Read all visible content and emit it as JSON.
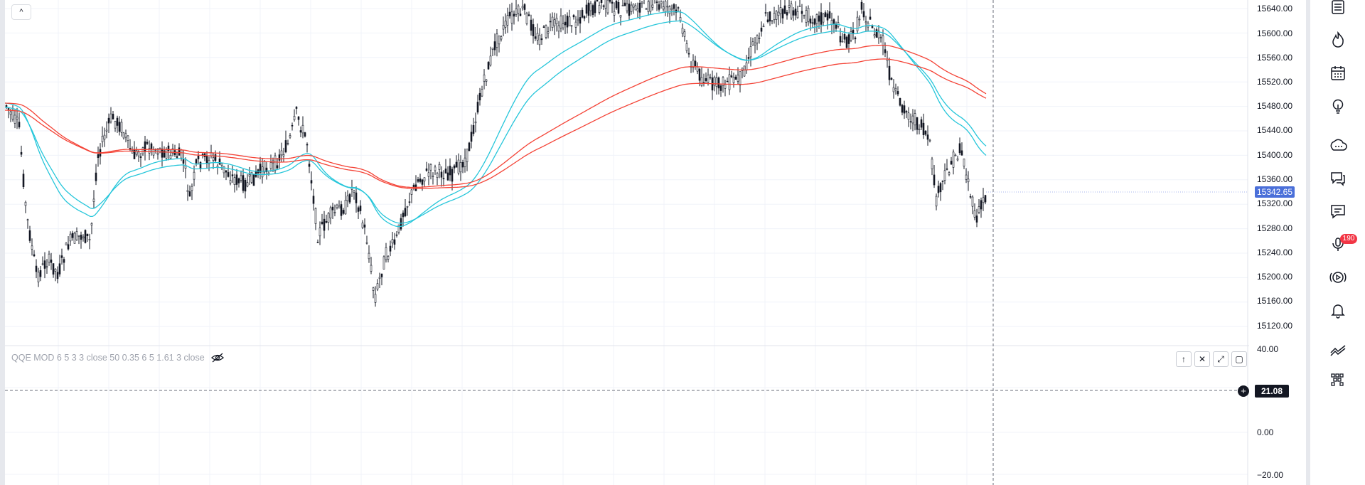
{
  "chart": {
    "price_axis_labels": [
      "15640.00",
      "15600.00",
      "15560.00",
      "15520.00",
      "15480.00",
      "15440.00",
      "15400.00",
      "15360.00",
      "15320.00",
      "15280.00",
      "15240.00",
      "15200.00",
      "15160.00",
      "15120.00"
    ],
    "current_price": "15342.65",
    "collapse_glyph": "^",
    "colors": {
      "candle": "#131722",
      "ema_fast": "#26c6da",
      "ema_slow": "#f44336",
      "price_badge": "#4a6fd9",
      "grid": "#f0f3fa"
    },
    "price_range": [
      15100,
      15660
    ]
  },
  "indicator": {
    "legend": "QQE MOD 6 5 3 3 close 50 0.35 6 5 1.61 3 close",
    "axis_labels": [
      "40.00",
      "0.00",
      "−20.00"
    ],
    "current_value": "21.08",
    "plus_glyph": "+",
    "controls": [
      "↑",
      "✕",
      "⤢",
      "▢"
    ]
  },
  "toolbar": {
    "icons": [
      "watchlist-icon",
      "hotlist-icon",
      "calendar-icon",
      "ideas-icon",
      "chat-icon",
      "discussion-icon",
      "notes-icon",
      "streams-icon",
      "live-icon",
      "alerts-icon",
      "data-window-icon",
      "object-tree-icon"
    ],
    "notification_count": "190"
  }
}
